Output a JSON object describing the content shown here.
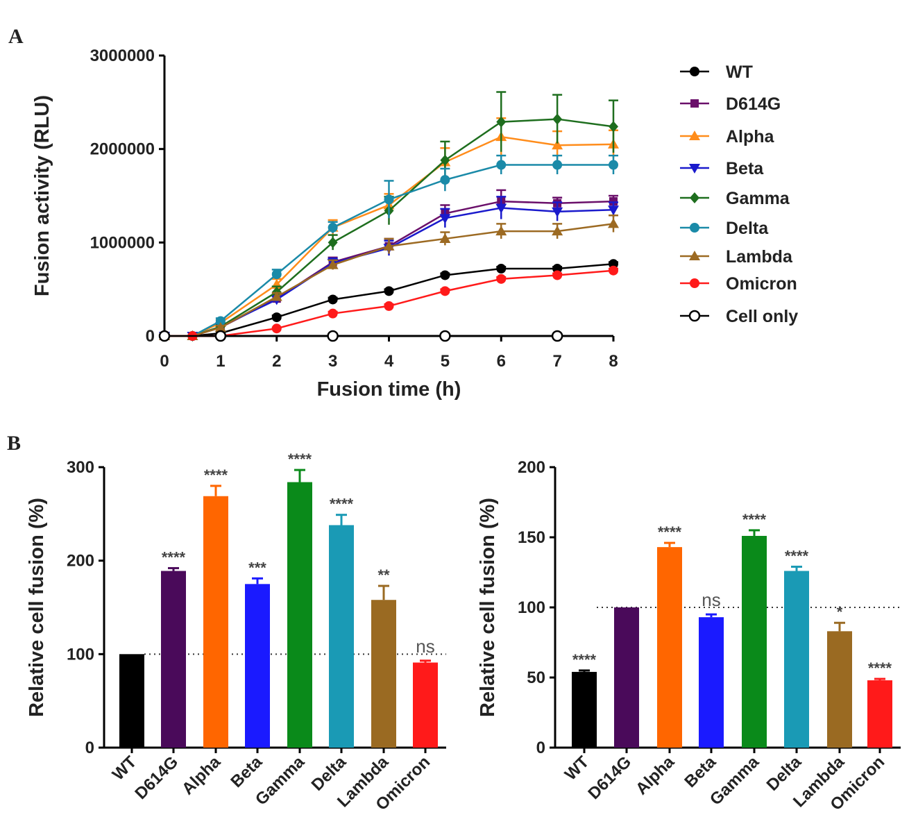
{
  "chart_data": [
    {
      "panel": "A",
      "type": "line",
      "xlabel": "Fusion time (h)",
      "ylabel": "Fusion activity (RLU)",
      "xlim": [
        0,
        8
      ],
      "ylim": [
        0,
        3000000
      ],
      "xticks": [
        0,
        1,
        2,
        3,
        4,
        5,
        6,
        7,
        8
      ],
      "yticks": [
        0,
        1000000,
        2000000,
        3000000
      ],
      "legend": "right",
      "series": [
        {
          "name": "WT",
          "color": "#000000",
          "marker": "circle",
          "x": [
            0,
            0.5,
            1,
            2,
            3,
            4,
            5,
            6,
            7,
            8
          ],
          "values": [
            0,
            0,
            30000,
            200000,
            390000,
            480000,
            650000,
            720000,
            720000,
            770000
          ],
          "errors": [
            0,
            0,
            10000,
            20000,
            20000,
            20000,
            20000,
            20000,
            20000,
            20000
          ]
        },
        {
          "name": "D614G",
          "color": "#6a0f6a",
          "marker": "square",
          "x": [
            0,
            0.5,
            1,
            2,
            3,
            4,
            5,
            6,
            7,
            8
          ],
          "values": [
            0,
            0,
            90000,
            400000,
            790000,
            960000,
            1310000,
            1440000,
            1420000,
            1440000
          ],
          "errors": [
            0,
            0,
            20000,
            40000,
            50000,
            80000,
            90000,
            120000,
            60000,
            60000
          ]
        },
        {
          "name": "Alpha",
          "color": "#ff8c1a",
          "marker": "triangle-up",
          "x": [
            0,
            0.5,
            1,
            2,
            3,
            4,
            5,
            6,
            7,
            8
          ],
          "values": [
            0,
            0,
            140000,
            550000,
            1160000,
            1400000,
            1860000,
            2130000,
            2040000,
            2050000
          ],
          "errors": [
            0,
            0,
            30000,
            60000,
            80000,
            120000,
            150000,
            200000,
            150000,
            150000
          ]
        },
        {
          "name": "Beta",
          "color": "#1a1acc",
          "marker": "triangle-down",
          "x": [
            0,
            0.5,
            1,
            2,
            3,
            4,
            5,
            6,
            7,
            8
          ],
          "values": [
            0,
            0,
            100000,
            390000,
            780000,
            940000,
            1260000,
            1370000,
            1330000,
            1350000
          ],
          "errors": [
            0,
            0,
            20000,
            40000,
            50000,
            80000,
            100000,
            120000,
            100000,
            80000
          ]
        },
        {
          "name": "Gamma",
          "color": "#1e6e1e",
          "marker": "diamond",
          "x": [
            0,
            0.5,
            1,
            2,
            3,
            4,
            5,
            6,
            7,
            8
          ],
          "values": [
            0,
            0,
            100000,
            470000,
            1000000,
            1340000,
            1880000,
            2290000,
            2320000,
            2240000
          ],
          "errors": [
            0,
            0,
            30000,
            60000,
            80000,
            150000,
            200000,
            320000,
            260000,
            280000
          ]
        },
        {
          "name": "Delta",
          "color": "#1a8aa8",
          "marker": "circle",
          "x": [
            0,
            0.5,
            1,
            2,
            3,
            4,
            5,
            6,
            7,
            8
          ],
          "values": [
            0,
            0,
            160000,
            660000,
            1160000,
            1460000,
            1670000,
            1830000,
            1830000,
            1830000
          ],
          "errors": [
            0,
            0,
            30000,
            50000,
            60000,
            200000,
            120000,
            100000,
            100000,
            100000
          ]
        },
        {
          "name": "Lambda",
          "color": "#9c6a22",
          "marker": "triangle-up",
          "x": [
            0,
            0.5,
            1,
            2,
            3,
            4,
            5,
            6,
            7,
            8
          ],
          "values": [
            0,
            0,
            90000,
            420000,
            760000,
            960000,
            1040000,
            1120000,
            1120000,
            1200000
          ],
          "errors": [
            0,
            0,
            20000,
            40000,
            50000,
            80000,
            70000,
            80000,
            80000,
            90000
          ]
        },
        {
          "name": "Omicron",
          "color": "#ff1a1a",
          "marker": "circle",
          "x": [
            0,
            0.5,
            1,
            2,
            3,
            4,
            5,
            6,
            7,
            8
          ],
          "values": [
            0,
            0,
            0,
            80000,
            240000,
            320000,
            480000,
            610000,
            650000,
            700000
          ],
          "errors": [
            0,
            0,
            5000,
            10000,
            20000,
            20000,
            20000,
            20000,
            20000,
            20000
          ]
        },
        {
          "name": "Cell only",
          "color": "#000000",
          "marker": "open-circle",
          "x": [
            0,
            1,
            3,
            5,
            7
          ],
          "values": [
            0,
            0,
            0,
            0,
            0
          ],
          "errors": [
            0,
            0,
            0,
            0,
            0
          ]
        }
      ]
    },
    {
      "panel": "B",
      "type": "bar",
      "ylabel": "Relative cell fusion (%)",
      "ylim": [
        0,
        300
      ],
      "yticks": [
        0,
        100,
        200,
        300
      ],
      "reference_line": 100,
      "categories": [
        "WT",
        "D614G",
        "Alpha",
        "Beta",
        "Gamma",
        "Delta",
        "Lambda",
        "Omicron"
      ],
      "values": [
        100,
        189,
        269,
        175,
        284,
        238,
        158,
        91
      ],
      "errors": [
        0,
        3,
        11,
        6,
        13,
        11,
        15,
        2
      ],
      "significance": [
        "",
        "****",
        "****",
        "***",
        "****",
        "****",
        "**",
        "ns"
      ],
      "colors": [
        "#000000",
        "#4a0a5a",
        "#ff6600",
        "#1a1aff",
        "#0a8a1a",
        "#1a9ab5",
        "#9a6a22",
        "#ff1a1a"
      ]
    },
    {
      "type": "bar",
      "ylabel": "Relative cell fusion (%)",
      "ylim": [
        0,
        200
      ],
      "yticks": [
        0,
        50,
        100,
        150,
        200
      ],
      "reference_line": 100,
      "categories": [
        "WT",
        "D614G",
        "Alpha",
        "Beta",
        "Gamma",
        "Delta",
        "Lambda",
        "Omicron"
      ],
      "values": [
        54,
        100,
        143,
        93,
        151,
        126,
        83,
        48
      ],
      "errors": [
        1,
        0,
        3,
        2,
        4,
        3,
        6,
        1
      ],
      "significance": [
        "****",
        "",
        "****",
        "ns",
        "****",
        "****",
        "*",
        "****"
      ],
      "colors": [
        "#000000",
        "#4a0a5a",
        "#ff6600",
        "#1a1aff",
        "#0a8a1a",
        "#1a9ab5",
        "#9a6a22",
        "#ff1a1a"
      ]
    }
  ]
}
